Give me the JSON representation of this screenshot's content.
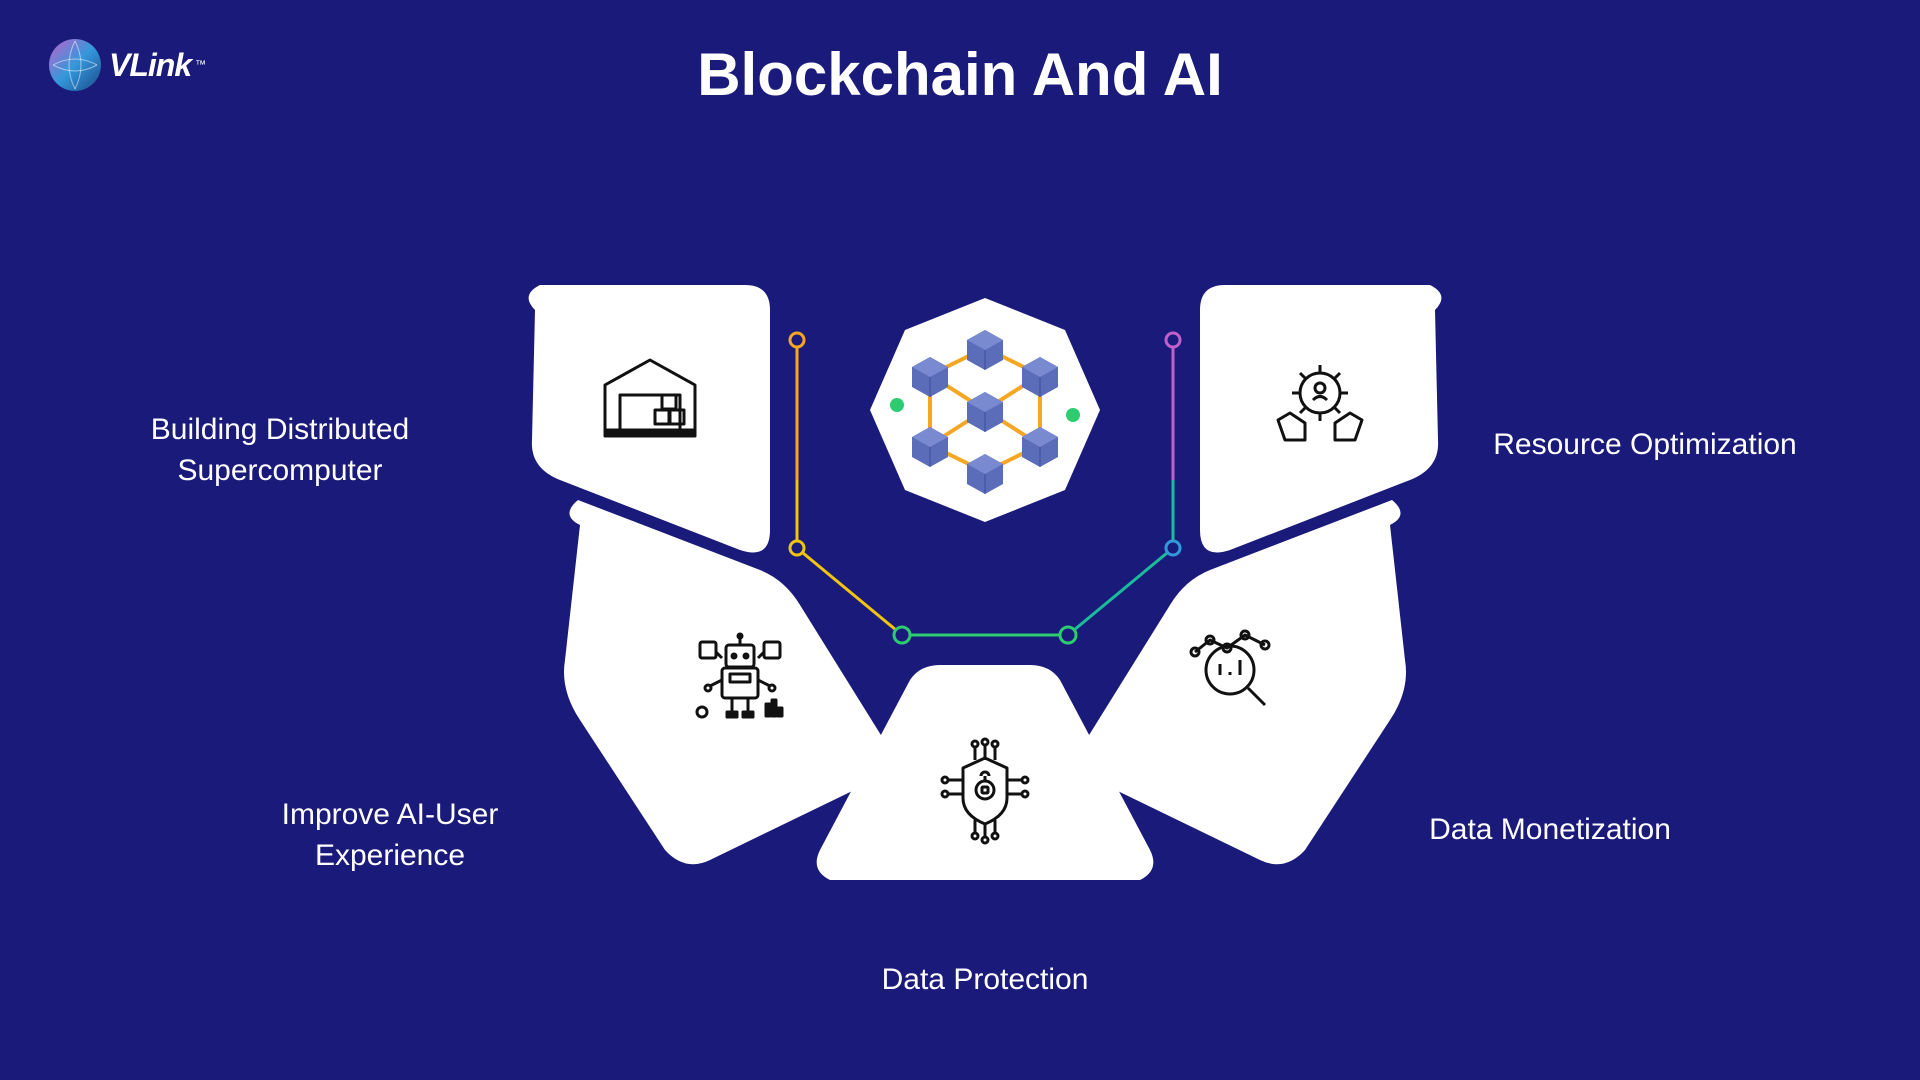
{
  "logo": {
    "text": "VLink",
    "tm": "™"
  },
  "title": "Blockchain And AI",
  "background_color": "#1a1a7a",
  "shape_fill": "#ffffff",
  "shape_radius": 20,
  "text_color": "#ffffff",
  "title_fontsize": 60,
  "label_fontsize": 30,
  "connectors": {
    "orange": "#f5a623",
    "green": "#2ecc71",
    "yellow": "#f1c40f",
    "teal": "#1abc9c",
    "purple": "#c061cb",
    "blue": "#3498db"
  },
  "center": {
    "cube_fill": "#5b6db8",
    "cube_edge": "#3a4a9e",
    "link_color": "#f5a623",
    "accent_dots": [
      "#2ecc71",
      "#2ecc71"
    ]
  },
  "petals": [
    {
      "id": "top-left",
      "label": "Building Distributed\nSupercomputer",
      "icon": "warehouse"
    },
    {
      "id": "top-right",
      "label": "Resource Optimization",
      "icon": "hands-gear"
    },
    {
      "id": "mid-left",
      "label": "Improve AI-User\nExperience",
      "icon": "robot"
    },
    {
      "id": "mid-right",
      "label": "Data Monetization",
      "icon": "analytics"
    },
    {
      "id": "bottom",
      "label": "Data Protection",
      "icon": "shield-circuit"
    }
  ]
}
